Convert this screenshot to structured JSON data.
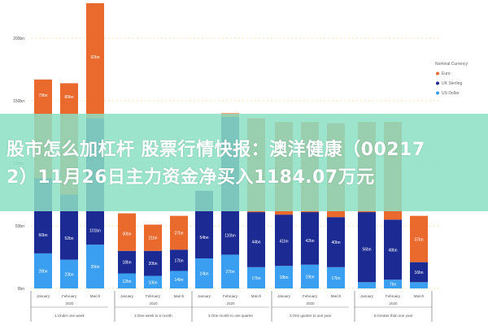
{
  "headline": {
    "line1": "股市怎么加杠杆 股票行情快报：澳洋健康（00217",
    "line2": "2）11月26日主力资金净买入1184.07万元"
  },
  "chart_data": {
    "type": "bar",
    "stacked": true,
    "ylim": [
      0,
      230
    ],
    "yticks": [
      {
        "v": 0,
        "label": "0bn"
      },
      {
        "v": 50,
        "label": "50bn"
      },
      {
        "v": 100,
        "label": "100bn"
      },
      {
        "v": 150,
        "label": "150bn"
      },
      {
        "v": 200,
        "label": "200bn"
      }
    ],
    "grid": true,
    "legend": {
      "title": "Nominal Currency",
      "placement": "right",
      "items": [
        "Euro",
        "UK Sterling",
        "US Dollar"
      ]
    },
    "colors": {
      "US Dollar": "#3a9ff0",
      "UK Sterling": "#1c2b94",
      "Euro": "#ea6a2e"
    },
    "groups": [
      {
        "label": "1.Under one week",
        "year": "2020",
        "months": [
          "January",
          "February",
          "March"
        ]
      },
      {
        "label": "2.One week to a month",
        "year": "2020",
        "months": [
          "January",
          "February",
          "March"
        ]
      },
      {
        "label": "3.One month to one quarter",
        "year": "2020",
        "months": [
          "January",
          "February",
          "March"
        ]
      },
      {
        "label": "4.One quarter to one year",
        "year": "2020",
        "months": [
          "January",
          "February",
          "March"
        ]
      },
      {
        "label": "5.Greater than one year",
        "year": "2020",
        "months": [
          "January",
          "February",
          "March"
        ]
      }
    ],
    "series": [
      {
        "name": "US Dollar",
        "values": [
          28,
          23,
          35,
          12,
          10,
          14,
          24,
          27,
          17,
          18,
          19,
          17,
          5,
          7,
          5
        ]
      },
      {
        "name": "UK Sterling",
        "values": [
          60,
          52,
          101,
          18,
          20,
          17,
          54,
          110,
          44,
          41,
          42,
          40,
          56,
          48,
          16
        ]
      },
      {
        "name": "Euro",
        "values": [
          79,
          89,
          92,
          30,
          21,
          27,
          0,
          3,
          75,
          74,
          72,
          75,
          72,
          78,
          37
        ]
      }
    ]
  }
}
